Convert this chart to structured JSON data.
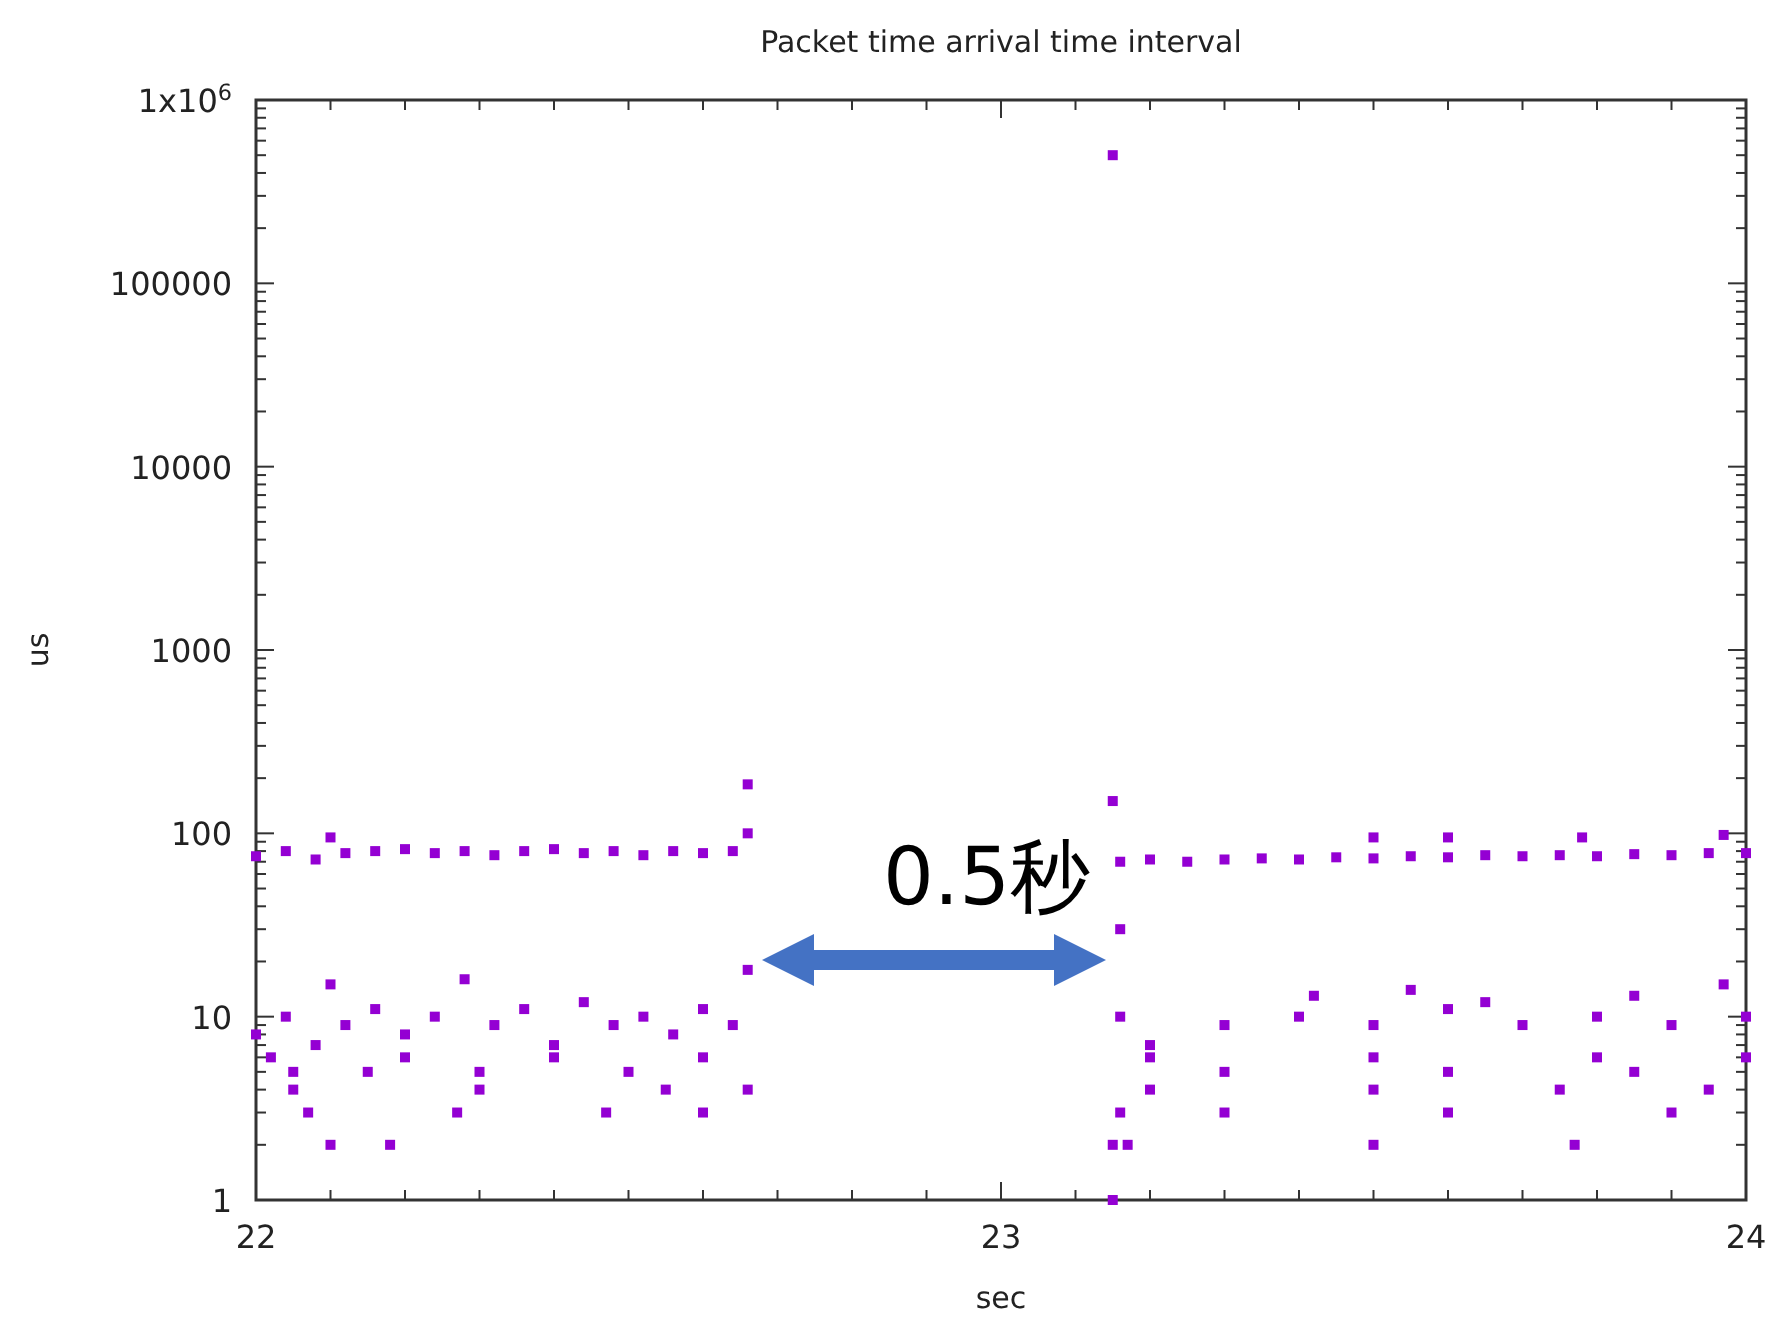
{
  "chart_data": {
    "type": "scatter",
    "title": "Packet time arrival time interval",
    "xlabel": "sec",
    "ylabel": "us",
    "log": "y",
    "marker": "square",
    "xlim": [
      22,
      24
    ],
    "xticks": [
      22,
      23,
      24
    ],
    "ylim": [
      1,
      1000000
    ],
    "yticks": [
      1,
      10,
      100,
      1000,
      10000,
      100000,
      {
        "value": 1000000,
        "label": "1x10$^{6}$"
      }
    ],
    "annotations": [
      "0.5秒"
    ],
    "series": [
      {
        "color": "#9400d3",
        "x": [
          22.0,
          22.04,
          22.08,
          22.1,
          22.12,
          22.16,
          22.2,
          22.24,
          22.28,
          22.32,
          22.36,
          22.4,
          22.44,
          22.48,
          22.52,
          22.56,
          22.6,
          22.64,
          22.66,
          22.66,
          22.0,
          22.04,
          22.08,
          22.1,
          22.12,
          22.16,
          22.2,
          22.24,
          22.28,
          22.32,
          22.36,
          22.4,
          22.44,
          22.48,
          22.52,
          22.56,
          22.6,
          22.64,
          22.66,
          22.02,
          22.2,
          22.4,
          22.6,
          22.05,
          22.15,
          22.3,
          22.5,
          22.05,
          22.3,
          22.55,
          22.66,
          22.07,
          22.27,
          22.47,
          22.6,
          22.1,
          22.18,
          23.15,
          23.15,
          23.16,
          23.16,
          23.16,
          23.15,
          23.15,
          23.17,
          23.16,
          23.2,
          23.25,
          23.3,
          23.35,
          23.4,
          23.45,
          23.5,
          23.55,
          23.6,
          23.65,
          23.7,
          23.75,
          23.8,
          23.85,
          23.9,
          23.95,
          24.0,
          23.5,
          23.6,
          23.78,
          23.97,
          23.2,
          23.3,
          23.4,
          23.5,
          23.6,
          23.7,
          23.8,
          23.9,
          24.0,
          23.42,
          23.55,
          23.65,
          23.85,
          23.97,
          23.2,
          23.5,
          23.8,
          24.0,
          23.3,
          23.6,
          23.85,
          23.2,
          23.5,
          23.75,
          23.95,
          23.3,
          23.6,
          23.9,
          23.5,
          23.77
        ],
        "values": [
          75,
          80,
          72,
          95,
          78,
          80,
          82,
          78,
          80,
          76,
          80,
          82,
          78,
          80,
          76,
          80,
          78,
          80,
          185,
          100,
          8,
          10,
          7,
          15,
          9,
          11,
          8,
          10,
          16,
          9,
          11,
          7,
          12,
          9,
          10,
          8,
          11,
          9,
          18,
          6,
          6,
          6,
          6,
          5,
          5,
          5,
          5,
          4,
          4,
          4,
          4,
          3,
          3,
          3,
          3,
          2,
          2,
          500000,
          150,
          70,
          30,
          10,
          1,
          2,
          2,
          3,
          72,
          70,
          72,
          73,
          72,
          74,
          73,
          75,
          74,
          76,
          75,
          76,
          75,
          77,
          76,
          78,
          78,
          95,
          95,
          95,
          98,
          7,
          9,
          10,
          9,
          11,
          9,
          10,
          9,
          10,
          13,
          14,
          12,
          13,
          15,
          6,
          6,
          6,
          6,
          5,
          5,
          5,
          4,
          4,
          4,
          4,
          3,
          3,
          3,
          2,
          2
        ]
      }
    ]
  }
}
